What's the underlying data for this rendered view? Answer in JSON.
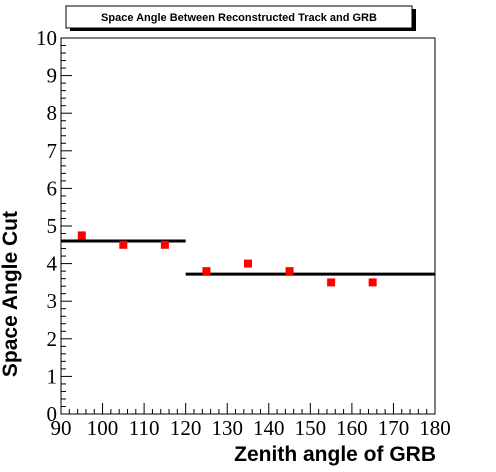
{
  "chart_data": {
    "type": "scatter",
    "title": "Space Angle Between Reconstructed Track and GRB",
    "xlabel": "Zenith angle of GRB",
    "ylabel": "Space Angle Cut",
    "xlim": [
      90,
      180
    ],
    "ylim": [
      0,
      10
    ],
    "xticks": [
      90,
      100,
      110,
      120,
      130,
      140,
      150,
      160,
      170,
      180
    ],
    "yticks": [
      0,
      1,
      2,
      3,
      4,
      5,
      6,
      7,
      8,
      9,
      10
    ],
    "grid": false,
    "legend": "none",
    "points": {
      "x": [
        95,
        105,
        115,
        125,
        135,
        145,
        155,
        165
      ],
      "y": [
        4.75,
        4.5,
        4.5,
        3.8,
        4.0,
        3.8,
        3.5,
        3.5
      ],
      "color": "#ff0000"
    },
    "segments": [
      {
        "x": [
          90,
          120
        ],
        "y": [
          4.6,
          4.6
        ]
      },
      {
        "x": [
          120,
          180
        ],
        "y": [
          3.72,
          3.72
        ]
      }
    ]
  }
}
